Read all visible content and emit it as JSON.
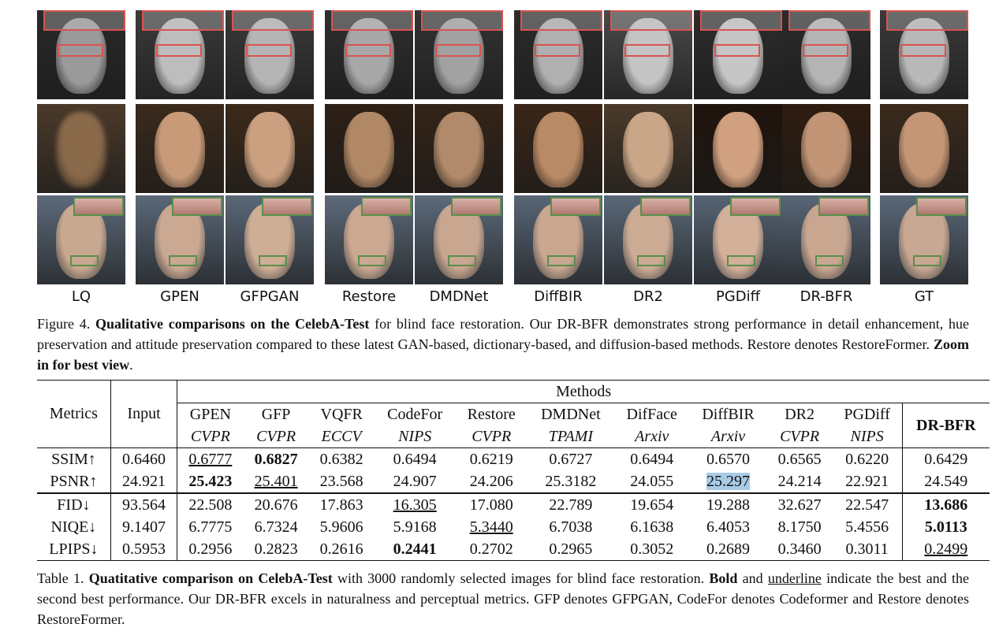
{
  "figure": {
    "columns": [
      "LQ",
      "GPEN",
      "GFPGAN",
      "Restore",
      "DMDNet",
      "DiffBIR",
      "DR2",
      "PGDiff",
      "DR-BFR",
      "GT"
    ],
    "caption_parts": [
      "Figure 4. ",
      "Qualitative comparisons on the CelebA-Test",
      " for blind face restoration. Our DR-BFR demonstrates strong performance in detail enhancement, hue preservation and attitude preservation compared to these latest GAN-based, dictionary-based, and diffusion-based methods. Restore denotes RestoreFormer. ",
      "Zoom in for best view",
      "."
    ]
  },
  "table": {
    "group_header": "Methods",
    "metrics_header": "Metrics",
    "input_header": "Input",
    "methods": [
      {
        "name": "GPEN",
        "venue": "CVPR"
      },
      {
        "name": "GFP",
        "venue": "CVPR"
      },
      {
        "name": "VQFR",
        "venue": "ECCV"
      },
      {
        "name": "CodeFor",
        "venue": "NIPS"
      },
      {
        "name": "Restore",
        "venue": "CVPR"
      },
      {
        "name": "DMDNet",
        "venue": "TPAMI"
      },
      {
        "name": "DifFace",
        "venue": "Arxiv"
      },
      {
        "name": "DiffBIR",
        "venue": "Arxiv"
      },
      {
        "name": "DR2",
        "venue": "CVPR"
      },
      {
        "name": "PGDiff",
        "venue": "NIPS"
      }
    ],
    "ours": "DR-BFR",
    "rows": [
      {
        "metric": "SSIM↑",
        "input": "0.6460",
        "values": [
          "0.6777",
          "0.6827",
          "0.6382",
          "0.6494",
          "0.6219",
          "0.6727",
          "0.6494",
          "0.6570",
          "0.6565",
          "0.6220"
        ],
        "ours": "0.6429"
      },
      {
        "metric": "PSNR↑",
        "input": "24.921",
        "values": [
          "25.423",
          "25.401",
          "23.568",
          "24.907",
          "24.206",
          "25.3182",
          "24.055",
          "25.297",
          "24.214",
          "22.921"
        ],
        "ours": "24.549"
      },
      {
        "metric": "FID↓",
        "input": "93.564",
        "values": [
          "22.508",
          "20.676",
          "17.863",
          "16.305",
          "17.080",
          "22.789",
          "19.654",
          "19.288",
          "32.627",
          "22.547"
        ],
        "ours": "13.686"
      },
      {
        "metric": "NIQE↓",
        "input": "9.1407",
        "values": [
          "6.7775",
          "6.7324",
          "5.9606",
          "5.9168",
          "5.3440",
          "6.7038",
          "6.1638",
          "6.4053",
          "8.1750",
          "5.4556"
        ],
        "ours": "5.0113"
      },
      {
        "metric": "LPIPS↓",
        "input": "0.5953",
        "values": [
          "0.2956",
          "0.2823",
          "0.2616",
          "0.2441",
          "0.2702",
          "0.2965",
          "0.3052",
          "0.2689",
          "0.3460",
          "0.3011"
        ],
        "ours": "0.2499"
      }
    ],
    "caption_parts": [
      "Table 1. ",
      "Quatitative comparison on CelebA-Test",
      " with 3000 randomly selected images for blind face restoration. ",
      "Bold",
      " and ",
      "underline",
      " indicate the best and the second best performance. Our DR-BFR excels in naturalness and perceptual metrics. GFP denotes GFPGAN, CodeFor denotes Codeformer and Restore denotes RestoreFormer."
    ]
  }
}
